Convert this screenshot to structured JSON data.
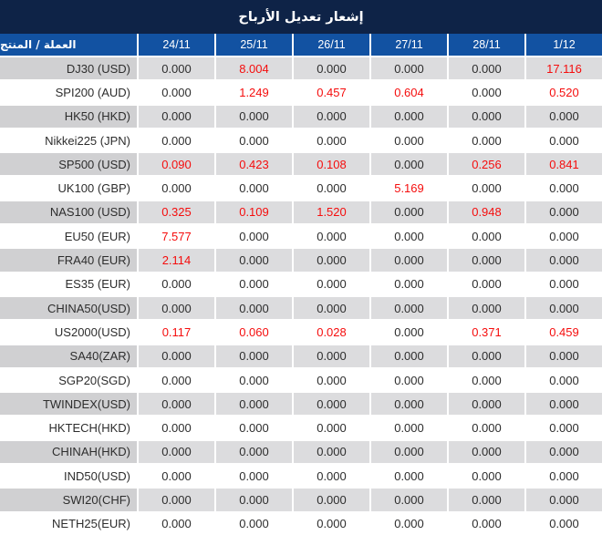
{
  "title": "إشعار تعديل الأرباح",
  "table": {
    "product_header": "العملة / المنتج",
    "date_headers": [
      "24/11",
      "25/11",
      "26/11",
      "27/11",
      "28/11",
      "1/12"
    ],
    "zero_value": "0.000",
    "rows": [
      {
        "label": "DJ30 (USD)",
        "values": [
          "0.000",
          "8.004",
          "0.000",
          "0.000",
          "0.000",
          "17.116"
        ]
      },
      {
        "label": "SPI200 (AUD)",
        "values": [
          "0.000",
          "1.249",
          "0.457",
          "0.604",
          "0.000",
          "0.520"
        ]
      },
      {
        "label": "HK50 (HKD)",
        "values": [
          "0.000",
          "0.000",
          "0.000",
          "0.000",
          "0.000",
          "0.000"
        ]
      },
      {
        "label": "Nikkei225 (JPN)",
        "values": [
          "0.000",
          "0.000",
          "0.000",
          "0.000",
          "0.000",
          "0.000"
        ]
      },
      {
        "label": "SP500 (USD)",
        "values": [
          "0.090",
          "0.423",
          "0.108",
          "0.000",
          "0.256",
          "0.841"
        ]
      },
      {
        "label": "UK100 (GBP)",
        "values": [
          "0.000",
          "0.000",
          "0.000",
          "5.169",
          "0.000",
          "0.000"
        ]
      },
      {
        "label": "NAS100 (USD)",
        "values": [
          "0.325",
          "0.109",
          "1.520",
          "0.000",
          "0.948",
          "0.000"
        ]
      },
      {
        "label": "EU50 (EUR)",
        "values": [
          "7.577",
          "0.000",
          "0.000",
          "0.000",
          "0.000",
          "0.000"
        ]
      },
      {
        "label": "FRA40 (EUR)",
        "values": [
          "2.114",
          "0.000",
          "0.000",
          "0.000",
          "0.000",
          "0.000"
        ]
      },
      {
        "label": "ES35 (EUR)",
        "values": [
          "0.000",
          "0.000",
          "0.000",
          "0.000",
          "0.000",
          "0.000"
        ]
      },
      {
        "label": "CHINA50(USD)",
        "values": [
          "0.000",
          "0.000",
          "0.000",
          "0.000",
          "0.000",
          "0.000"
        ]
      },
      {
        "label": "US2000(USD)",
        "values": [
          "0.117",
          "0.060",
          "0.028",
          "0.000",
          "0.371",
          "0.459"
        ]
      },
      {
        "label": "SA40(ZAR)",
        "values": [
          "0.000",
          "0.000",
          "0.000",
          "0.000",
          "0.000",
          "0.000"
        ]
      },
      {
        "label": "SGP20(SGD)",
        "values": [
          "0.000",
          "0.000",
          "0.000",
          "0.000",
          "0.000",
          "0.000"
        ]
      },
      {
        "label": "TWINDEX(USD)",
        "values": [
          "0.000",
          "0.000",
          "0.000",
          "0.000",
          "0.000",
          "0.000"
        ]
      },
      {
        "label": "HKTECH(HKD)",
        "values": [
          "0.000",
          "0.000",
          "0.000",
          "0.000",
          "0.000",
          "0.000"
        ]
      },
      {
        "label": "CHINAH(HKD)",
        "values": [
          "0.000",
          "0.000",
          "0.000",
          "0.000",
          "0.000",
          "0.000"
        ]
      },
      {
        "label": "IND50(USD)",
        "values": [
          "0.000",
          "0.000",
          "0.000",
          "0.000",
          "0.000",
          "0.000"
        ]
      },
      {
        "label": "SWI20(CHF)",
        "values": [
          "0.000",
          "0.000",
          "0.000",
          "0.000",
          "0.000",
          "0.000"
        ]
      },
      {
        "label": "NETH25(EUR)",
        "values": [
          "0.000",
          "0.000",
          "0.000",
          "0.000",
          "0.000",
          "0.000"
        ]
      }
    ]
  },
  "colors": {
    "title_bg": "#0e2347",
    "header_bg": "#1252a2",
    "row_gray_label": "#d0d0d2",
    "row_gray_cell": "#dcdcde",
    "row_white": "#ffffff",
    "value_red": "#f50d0d",
    "text_dark": "#2d2d2d",
    "header_text": "#ffffff"
  }
}
